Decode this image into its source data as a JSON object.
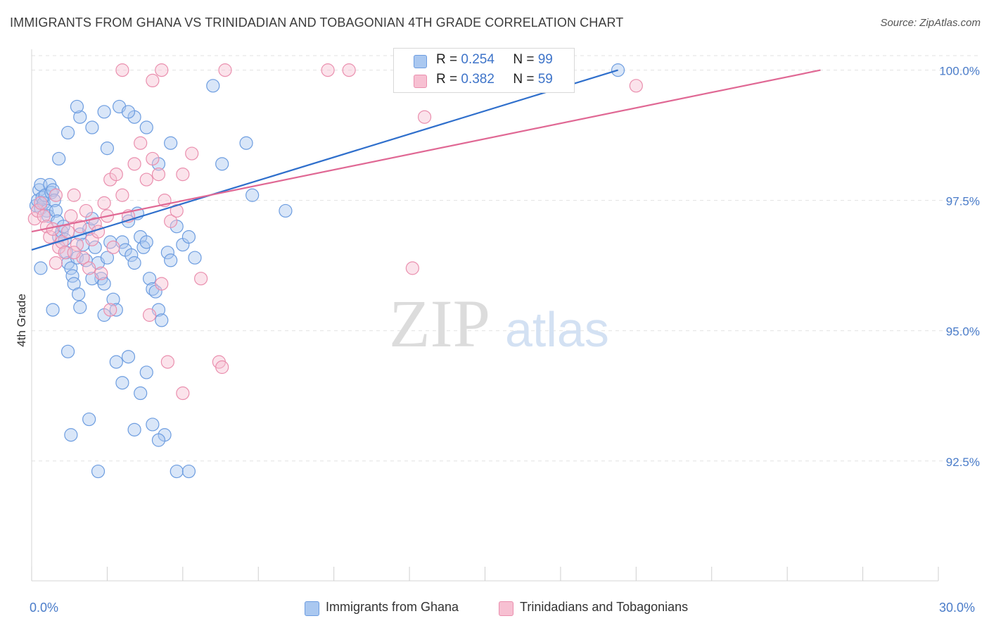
{
  "title": "IMMIGRANTS FROM GHANA VS TRINIDADIAN AND TOBAGONIAN 4TH GRADE CORRELATION CHART",
  "source": "Source: ZipAtlas.com",
  "watermark": {
    "zip": "ZIP",
    "atlas": "atlas"
  },
  "legend": {
    "rows": [
      {
        "r_label": "R =",
        "r_value": "0.254",
        "n_label": "N =",
        "n_value": "99"
      },
      {
        "r_label": "R =",
        "r_value": "0.382",
        "n_label": "N =",
        "n_value": "59"
      }
    ]
  },
  "bottom_legend": {
    "series1": "Immigrants from Ghana",
    "series2": "Trinidadians and Tobagonians"
  },
  "colors": {
    "blue_fill": "#aac8f0",
    "blue_stroke": "#6d9de0",
    "blue_line": "#2f6fcc",
    "pink_fill": "#f7c0d2",
    "pink_stroke": "#ea8fae",
    "pink_line": "#e06894",
    "tick_text": "#4a7cc9"
  },
  "chart_data": {
    "type": "scatter",
    "title": "IMMIGRANTS FROM GHANA VS TRINIDADIAN AND TOBAGONIAN 4TH GRADE CORRELATION CHART",
    "xlabel": "",
    "ylabel": "4th Grade",
    "xlim": [
      0,
      30
    ],
    "ylim": [
      90.2,
      100.4
    ],
    "x_tick_labels": [
      "0.0%",
      "30.0%"
    ],
    "y_ticks": [
      92.5,
      95.0,
      97.5,
      100.0
    ],
    "y_tick_labels": [
      "92.5%",
      "95.0%",
      "97.5%",
      "100.0%"
    ],
    "grid": true,
    "legend_position": "top-center",
    "series": [
      {
        "name": "Immigrants from Ghana",
        "r": 0.254,
        "n": 99,
        "trend": [
          [
            0,
            96.55
          ],
          [
            19.4,
            100.0
          ]
        ],
        "points": [
          [
            0.15,
            97.4
          ],
          [
            0.2,
            97.5
          ],
          [
            0.25,
            97.7
          ],
          [
            0.3,
            97.35
          ],
          [
            0.3,
            97.8
          ],
          [
            0.35,
            97.55
          ],
          [
            0.4,
            97.45
          ],
          [
            0.45,
            97.6
          ],
          [
            0.5,
            97.3
          ],
          [
            0.55,
            97.2
          ],
          [
            0.6,
            97.8
          ],
          [
            0.65,
            97.65
          ],
          [
            0.7,
            97.7
          ],
          [
            0.75,
            97.5
          ],
          [
            0.8,
            97.3
          ],
          [
            0.85,
            97.1
          ],
          [
            0.9,
            96.8
          ],
          [
            1.0,
            96.9
          ],
          [
            1.05,
            97.0
          ],
          [
            1.1,
            96.75
          ],
          [
            1.15,
            96.5
          ],
          [
            1.2,
            96.3
          ],
          [
            1.3,
            96.2
          ],
          [
            1.35,
            96.05
          ],
          [
            1.4,
            95.9
          ],
          [
            1.5,
            96.4
          ],
          [
            1.55,
            95.7
          ],
          [
            1.6,
            96.85
          ],
          [
            1.7,
            96.65
          ],
          [
            1.8,
            96.35
          ],
          [
            1.9,
            96.95
          ],
          [
            2.0,
            97.15
          ],
          [
            2.1,
            96.6
          ],
          [
            2.2,
            96.3
          ],
          [
            2.3,
            96.0
          ],
          [
            2.4,
            95.9
          ],
          [
            2.5,
            96.4
          ],
          [
            2.6,
            96.7
          ],
          [
            2.7,
            95.6
          ],
          [
            2.8,
            95.4
          ],
          [
            3.0,
            96.7
          ],
          [
            3.1,
            96.55
          ],
          [
            3.2,
            97.1
          ],
          [
            3.3,
            96.45
          ],
          [
            3.4,
            96.3
          ],
          [
            3.5,
            97.25
          ],
          [
            3.6,
            96.8
          ],
          [
            3.7,
            96.6
          ],
          [
            3.8,
            96.7
          ],
          [
            3.9,
            96.0
          ],
          [
            4.0,
            95.8
          ],
          [
            4.1,
            95.75
          ],
          [
            4.2,
            95.4
          ],
          [
            4.3,
            95.2
          ],
          [
            4.5,
            96.5
          ],
          [
            4.6,
            96.35
          ],
          [
            4.8,
            97.0
          ],
          [
            5.0,
            96.65
          ],
          [
            5.2,
            96.8
          ],
          [
            5.4,
            96.4
          ],
          [
            0.3,
            96.2
          ],
          [
            0.7,
            95.4
          ],
          [
            1.2,
            94.6
          ],
          [
            1.6,
            95.45
          ],
          [
            2.0,
            96.0
          ],
          [
            2.4,
            95.3
          ],
          [
            2.8,
            94.4
          ],
          [
            3.2,
            94.5
          ],
          [
            3.6,
            93.8
          ],
          [
            4.0,
            93.2
          ],
          [
            4.4,
            93.0
          ],
          [
            4.8,
            92.3
          ],
          [
            5.2,
            92.3
          ],
          [
            1.3,
            93.0
          ],
          [
            1.9,
            93.3
          ],
          [
            2.2,
            92.3
          ],
          [
            3.0,
            94.0
          ],
          [
            3.4,
            93.1
          ],
          [
            3.8,
            94.2
          ],
          [
            4.2,
            92.9
          ],
          [
            0.9,
            98.3
          ],
          [
            1.2,
            98.8
          ],
          [
            1.6,
            99.1
          ],
          [
            2.0,
            98.9
          ],
          [
            2.4,
            99.2
          ],
          [
            2.9,
            99.3
          ],
          [
            3.4,
            99.1
          ],
          [
            3.8,
            98.9
          ],
          [
            4.2,
            98.2
          ],
          [
            4.6,
            98.6
          ],
          [
            1.5,
            99.3
          ],
          [
            2.5,
            98.5
          ],
          [
            3.2,
            99.2
          ],
          [
            6.0,
            99.7
          ],
          [
            6.3,
            98.2
          ],
          [
            7.1,
            98.6
          ],
          [
            7.3,
            97.6
          ],
          [
            8.4,
            97.3
          ],
          [
            19.4,
            100.0
          ]
        ]
      },
      {
        "name": "Trinidadians and Tobagonians",
        "r": 0.382,
        "n": 59,
        "trend": [
          [
            0,
            96.9
          ],
          [
            26.1,
            100.0
          ]
        ],
        "points": [
          [
            0.1,
            97.15
          ],
          [
            0.2,
            97.3
          ],
          [
            0.3,
            97.45
          ],
          [
            0.4,
            97.2
          ],
          [
            0.5,
            97.0
          ],
          [
            0.6,
            96.8
          ],
          [
            0.7,
            96.95
          ],
          [
            0.8,
            96.3
          ],
          [
            0.9,
            96.6
          ],
          [
            1.0,
            96.7
          ],
          [
            1.1,
            96.5
          ],
          [
            1.2,
            96.9
          ],
          [
            1.3,
            97.2
          ],
          [
            1.4,
            97.6
          ],
          [
            1.5,
            96.65
          ],
          [
            1.6,
            97.0
          ],
          [
            1.7,
            96.4
          ],
          [
            1.8,
            97.3
          ],
          [
            1.9,
            96.2
          ],
          [
            2.0,
            96.75
          ],
          [
            2.1,
            97.05
          ],
          [
            2.2,
            96.9
          ],
          [
            2.3,
            96.1
          ],
          [
            2.4,
            97.45
          ],
          [
            2.5,
            97.2
          ],
          [
            2.6,
            97.9
          ],
          [
            2.7,
            96.6
          ],
          [
            2.8,
            98.0
          ],
          [
            3.0,
            97.6
          ],
          [
            3.2,
            97.2
          ],
          [
            3.4,
            98.2
          ],
          [
            3.6,
            98.6
          ],
          [
            3.8,
            97.9
          ],
          [
            4.0,
            98.3
          ],
          [
            4.2,
            98.0
          ],
          [
            4.4,
            97.5
          ],
          [
            4.6,
            97.1
          ],
          [
            4.8,
            97.3
          ],
          [
            5.0,
            98.0
          ],
          [
            5.3,
            98.4
          ],
          [
            0.8,
            97.6
          ],
          [
            1.4,
            96.5
          ],
          [
            2.6,
            95.4
          ],
          [
            3.9,
            95.3
          ],
          [
            4.3,
            95.9
          ],
          [
            5.6,
            96.0
          ],
          [
            6.2,
            94.4
          ],
          [
            6.3,
            94.3
          ],
          [
            4.5,
            94.4
          ],
          [
            5.0,
            93.8
          ],
          [
            3.0,
            100.0
          ],
          [
            4.0,
            99.8
          ],
          [
            4.3,
            100.0
          ],
          [
            6.4,
            100.0
          ],
          [
            9.8,
            100.0
          ],
          [
            10.5,
            100.0
          ],
          [
            12.6,
            96.2
          ],
          [
            13.0,
            99.1
          ],
          [
            20.0,
            99.7
          ]
        ]
      }
    ]
  }
}
